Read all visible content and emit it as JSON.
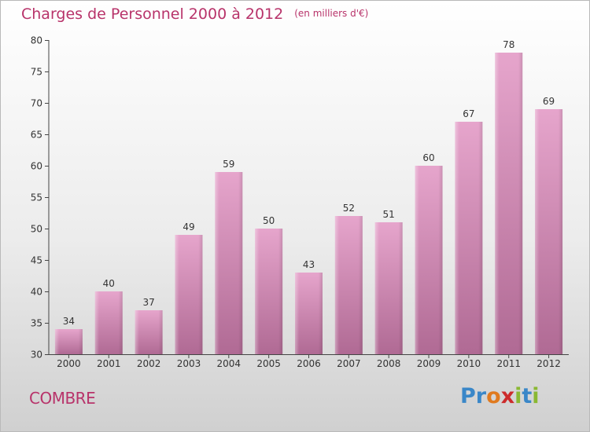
{
  "header": {
    "title": "Charges de Personnel 2000 à 2012",
    "unit": "(en milliers d'€)"
  },
  "footer": {
    "location": "COMBRE",
    "logo_text": "Proxiti",
    "logo_colors": [
      "#3a87c8",
      "#3a87c8",
      "#e07a1f",
      "#cc2b2b",
      "#8ab832",
      "#3a87c8",
      "#8ab832"
    ]
  },
  "chart_data": {
    "type": "bar",
    "categories": [
      "2000",
      "2001",
      "2002",
      "2003",
      "2004",
      "2005",
      "2006",
      "2007",
      "2008",
      "2009",
      "2010",
      "2011",
      "2012"
    ],
    "values": [
      34,
      40,
      37,
      49,
      59,
      50,
      43,
      52,
      51,
      60,
      67,
      78,
      69
    ],
    "title": "Charges de Personnel 2000 à 2012",
    "subtitle": "(en milliers d'€)",
    "xlabel": "",
    "ylabel": "",
    "ylim": [
      30,
      80
    ],
    "yticks": [
      30,
      35,
      40,
      45,
      50,
      55,
      60,
      65,
      70,
      75,
      80
    ],
    "grid": false,
    "bar_color_top": "#e6a5cc",
    "bar_color_bottom": "#b06a94",
    "text_color": "#333333"
  }
}
